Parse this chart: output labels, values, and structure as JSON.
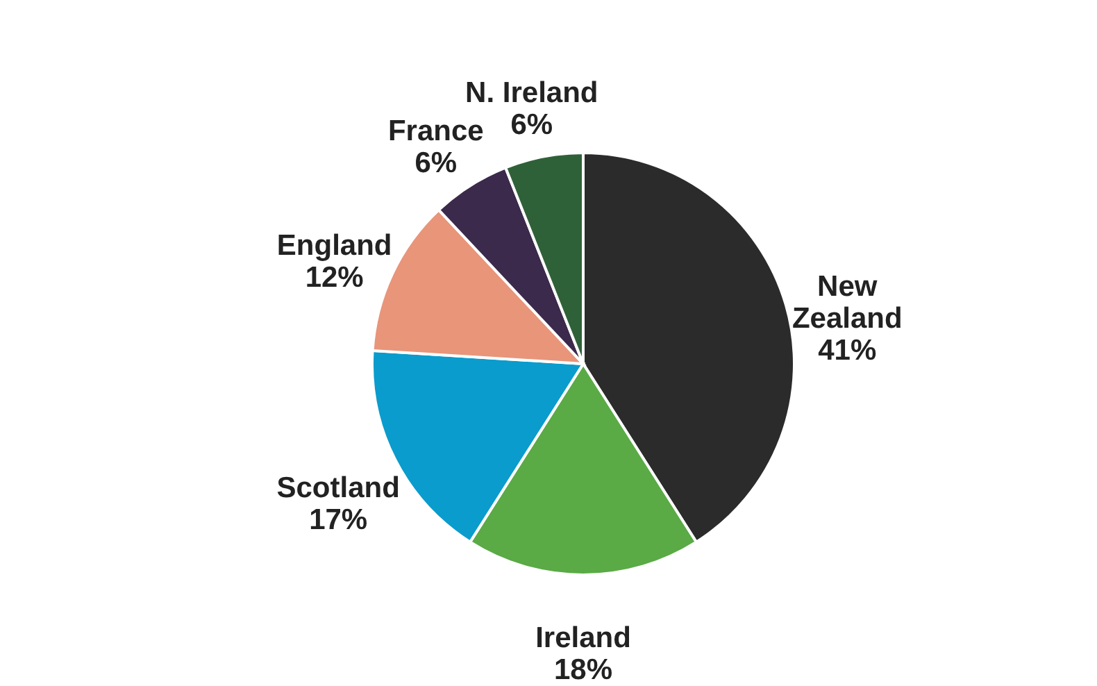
{
  "chart_data": {
    "type": "pie",
    "categories": [
      "New Zealand",
      "Ireland",
      "Scotland",
      "England",
      "France",
      "N. Ireland"
    ],
    "values": [
      41,
      18,
      17,
      12,
      6,
      6
    ],
    "value_labels": [
      "41%",
      "18%",
      "17%",
      "12%",
      "6%",
      "6%"
    ],
    "colors": [
      "#2b2b2b",
      "#5aaa46",
      "#0a9ccc",
      "#e8957a",
      "#3b2a4c",
      "#2f6138"
    ]
  }
}
